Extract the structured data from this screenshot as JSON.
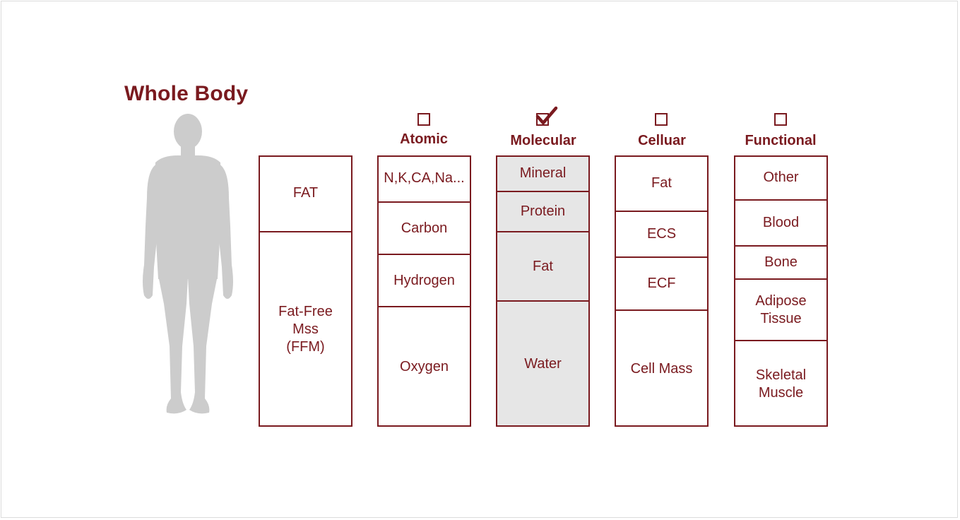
{
  "title": "Whole Body",
  "accent_color": "#7a1a1f",
  "shade_color": "#e6e6e6",
  "figure_icon": "human-silhouette-icon",
  "columns": [
    {
      "id": "whole",
      "header": "",
      "checked": null,
      "cells": [
        "FAT",
        "Fat-Free\nMss\n(FFM)"
      ]
    },
    {
      "id": "atomic",
      "header": "Atomic",
      "checked": false,
      "cells": [
        "N,K,CA,Na...",
        "Carbon",
        "Hydrogen",
        "Oxygen"
      ]
    },
    {
      "id": "molecular",
      "header": "Molecular",
      "checked": true,
      "cells": [
        "Mineral",
        "Protein",
        "Fat",
        "Water"
      ]
    },
    {
      "id": "cellular",
      "header": "Celluar",
      "checked": false,
      "cells": [
        "Fat",
        "ECS",
        "ECF",
        "Cell Mass"
      ]
    },
    {
      "id": "functional",
      "header": "Functional",
      "checked": false,
      "cells": [
        "Other",
        "Blood",
        "Bone",
        "Adipose\nTissue",
        "Skeletal\nMuscle"
      ]
    }
  ]
}
